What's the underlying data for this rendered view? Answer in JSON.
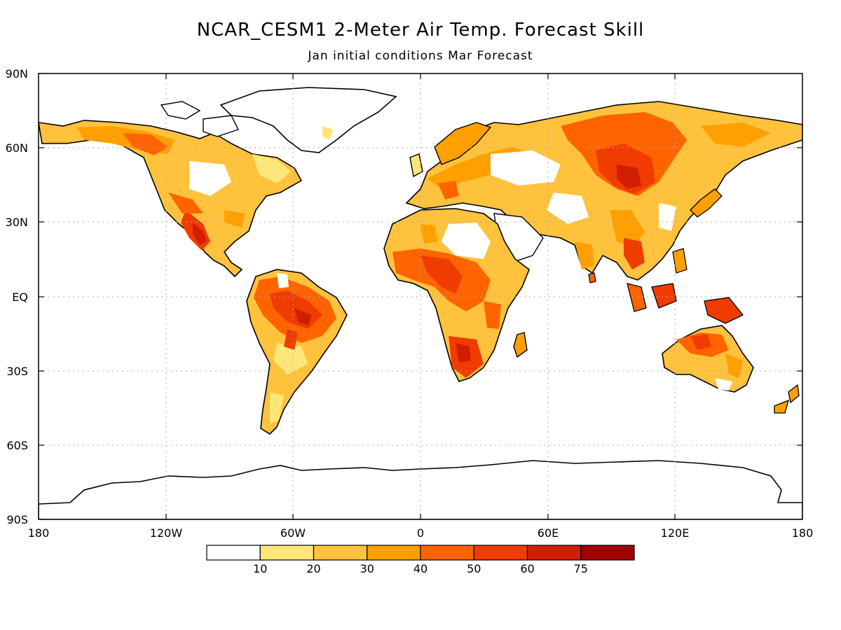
{
  "title": "NCAR_CESM1 2-Meter Air Temp. Forecast Skill",
  "subtitle": "Jan initial conditions  Mar Forecast",
  "lat_labels": [
    "90N",
    "60N",
    "30N",
    "EQ",
    "30S",
    "60S",
    "90S"
  ],
  "lon_labels": [
    "180",
    "120W",
    "60W",
    "0",
    "60E",
    "120E",
    "180"
  ],
  "colorbar": {
    "labels": [
      "10",
      "20",
      "30",
      "40",
      "50",
      "60",
      "75"
    ],
    "colors": [
      "#ffffff",
      "#ffe678",
      "#ffc23c",
      "#ffa000",
      "#ff6400",
      "#f03c00",
      "#d21e00",
      "#a00000"
    ]
  },
  "colors": {
    "land_outline": "#000000",
    "grid": "#aaaaaa"
  }
}
